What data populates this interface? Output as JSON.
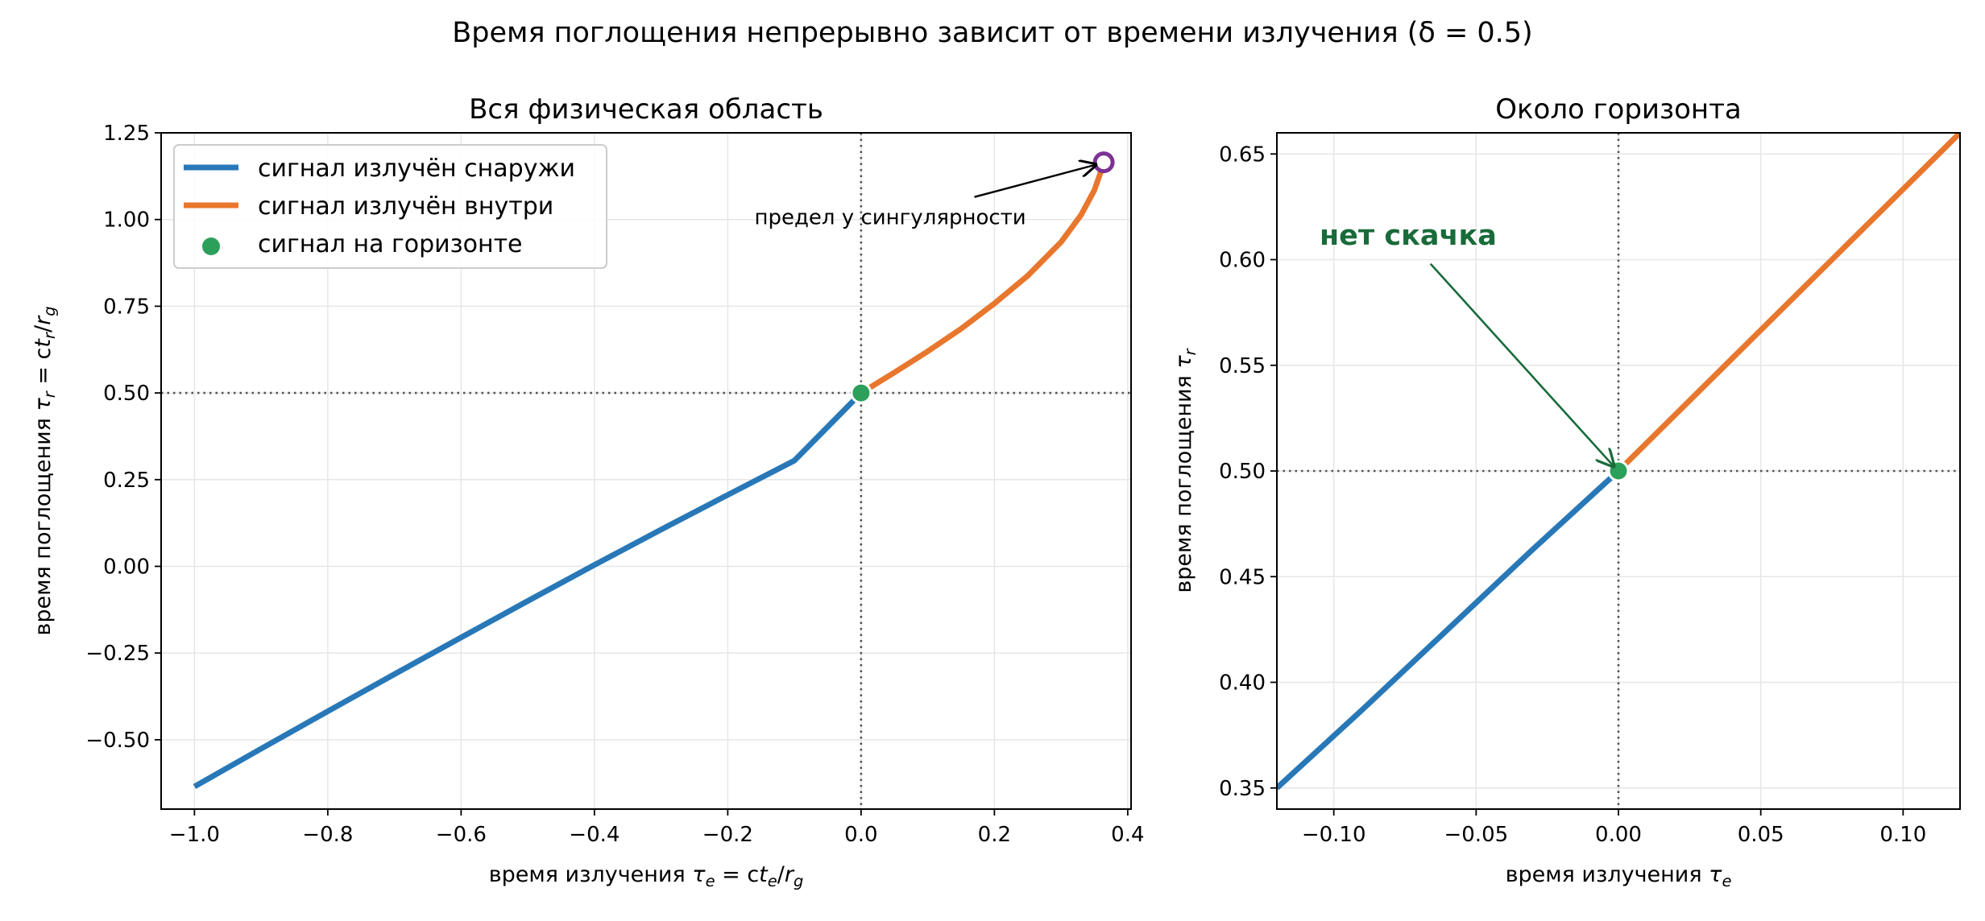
{
  "figure": {
    "title": "Время поглощения непрерывно зависит от времени излучения (δ = 0.5)"
  },
  "colors": {
    "outside": "#2878b8",
    "inside": "#e8772e",
    "horizon": "#2ca05a",
    "singularity": "#7b3294",
    "annotation_green": "#196b3a",
    "grid": "#e6e6e6",
    "refline": "#555555"
  },
  "chart_data": [
    {
      "type": "line",
      "title": "Вся физическая область",
      "xlabel": "время излучения  τ_e = ct_e/r_g",
      "ylabel": "время поглощения  τ_r = ct_r/r_g",
      "xlim": [
        -1.05,
        0.405
      ],
      "ylim": [
        -0.7,
        1.25
      ],
      "xticks": [
        -1.0,
        -0.8,
        -0.6,
        -0.4,
        -0.2,
        0.0,
        0.2,
        0.4
      ],
      "xtick_labels": [
        "−1.0",
        "−0.8",
        "−0.6",
        "−0.4",
        "−0.2",
        "0.0",
        "0.2",
        "0.4"
      ],
      "yticks": [
        -0.5,
        -0.25,
        0.0,
        0.25,
        0.5,
        0.75,
        1.0,
        1.25
      ],
      "ytick_labels": [
        "−0.50",
        "−0.25",
        "0.00",
        "0.25",
        "0.50",
        "0.75",
        "1.00",
        "1.25"
      ],
      "grid": true,
      "legend_position": "top-left",
      "reference_lines": {
        "x": 0.0,
        "y": 0.5
      },
      "series": [
        {
          "name": "сигнал излучён снаружи",
          "color": "#2878b8",
          "x": [
            -1.0,
            -0.9,
            -0.8,
            -0.7,
            -0.6,
            -0.5,
            -0.4,
            -0.3,
            -0.2,
            -0.1,
            0.0
          ],
          "y": [
            -0.635,
            -0.526,
            -0.418,
            -0.311,
            -0.205,
            -0.1,
            0.004,
            0.106,
            0.206,
            0.305,
            0.5
          ]
        },
        {
          "name": "сигнал излучён внутри",
          "color": "#e8772e",
          "x": [
            0.0,
            0.05,
            0.1,
            0.15,
            0.2,
            0.25,
            0.3,
            0.33,
            0.35,
            0.36,
            0.364
          ],
          "y": [
            0.5,
            0.559,
            0.62,
            0.685,
            0.758,
            0.838,
            0.935,
            1.013,
            1.085,
            1.14,
            1.165
          ]
        },
        {
          "name": "сигнал на горизонте",
          "color": "#2ca05a",
          "marker": "circle",
          "x": [
            0.0
          ],
          "y": [
            0.5
          ]
        }
      ],
      "singularity_point": {
        "x": 0.364,
        "y": 1.165
      },
      "annotation": {
        "text": "предел у сингулярности",
        "x": -0.16,
        "y": 1.0,
        "arrow_to": [
          0.364,
          1.165
        ]
      }
    },
    {
      "type": "line",
      "title": "Около горизонта",
      "xlabel": "время излучения  τ_e",
      "ylabel": "время поглощения  τ_r",
      "xlim": [
        -0.12,
        0.12
      ],
      "ylim": [
        0.34,
        0.66
      ],
      "xticks": [
        -0.1,
        -0.05,
        0.0,
        0.05,
        0.1
      ],
      "xtick_labels": [
        "−0.10",
        "−0.05",
        "0.00",
        "0.05",
        "0.10"
      ],
      "yticks": [
        0.35,
        0.4,
        0.45,
        0.5,
        0.55,
        0.6,
        0.65
      ],
      "ytick_labels": [
        "0.35",
        "0.40",
        "0.45",
        "0.50",
        "0.55",
        "0.60",
        "0.65"
      ],
      "grid": true,
      "reference_lines": {
        "x": 0.0,
        "y": 0.5
      },
      "series": [
        {
          "name": "сигнал излучён снаружи",
          "color": "#2878b8",
          "x": [
            -0.12,
            -0.09,
            -0.06,
            -0.03,
            0.0
          ],
          "y": [
            0.35,
            0.387,
            0.425,
            0.463,
            0.5
          ]
        },
        {
          "name": "сигнал излучён внутри",
          "color": "#e8772e",
          "x": [
            0.0,
            0.03,
            0.06,
            0.09,
            0.12
          ],
          "y": [
            0.5,
            0.54,
            0.58,
            0.62,
            0.66
          ]
        },
        {
          "name": "сигнал на горизонте",
          "color": "#2ca05a",
          "marker": "circle",
          "x": [
            0.0
          ],
          "y": [
            0.5
          ]
        }
      ],
      "annotation": {
        "text": "нет скачка",
        "x": -0.105,
        "y": 0.607,
        "arrow_to": [
          0.0,
          0.5
        ]
      }
    }
  ]
}
